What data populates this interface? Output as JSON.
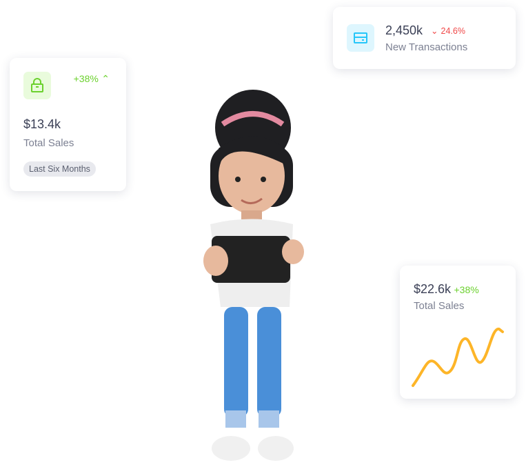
{
  "cards": {
    "total_sales_left": {
      "value": "$13.4k",
      "label": "Total Sales",
      "change": "+38%",
      "period": "Last Six Months",
      "icon": "shopping-bag-icon",
      "accent": "#6bd12d"
    },
    "transactions": {
      "value": "2,450k",
      "label": "New Transactions",
      "change": "24.6%",
      "icon": "credit-card-icon",
      "accent": "#26c6f9"
    },
    "total_sales_right": {
      "value": "$22.6k",
      "change": "+38%",
      "label": "Total Sales",
      "line_color": "#fdb528"
    }
  },
  "colors": {
    "up": "#6bd12d",
    "down": "#f04848"
  }
}
